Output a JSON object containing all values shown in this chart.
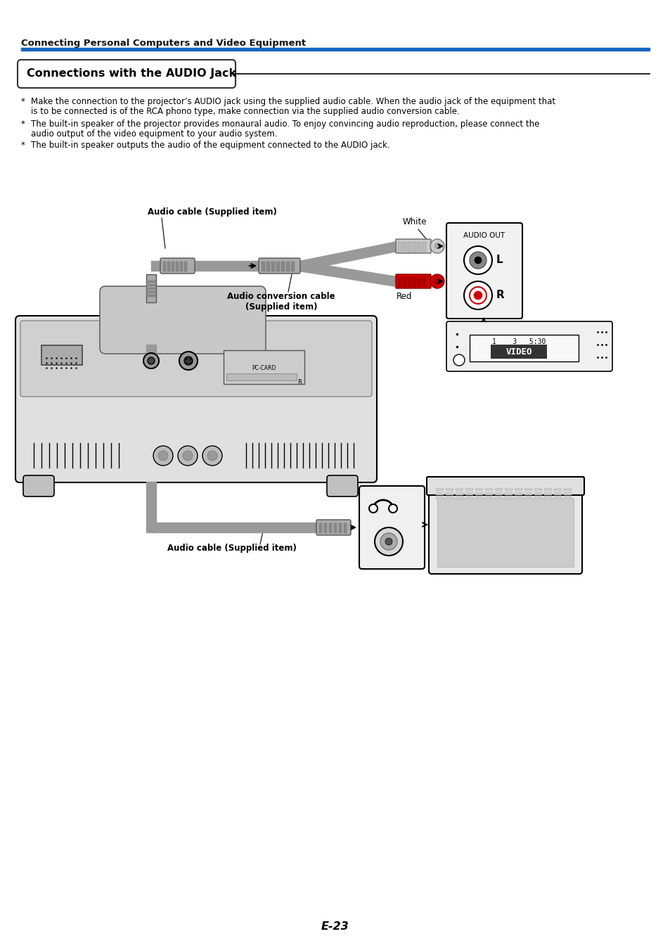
{
  "page_title": "Connecting Personal Computers and Video Equipment",
  "section_title": "Connections with the AUDIO Jack",
  "bullet1_line1": "Make the connection to the projector’s AUDIO jack using the supplied audio cable. When the audio jack of the equipment that",
  "bullet1_line2": "is to be connected is of the RCA phono type, make connection via the supplied audio conversion cable.",
  "bullet2_line1": "The built-in speaker of the projector provides monaural audio. To enjoy convincing audio reproduction, please connect the",
  "bullet2_line2": "audio output of the video equipment to your audio system.",
  "bullet3": "The built-in speaker outputs the audio of the equipment connected to the AUDIO jack.",
  "label_audio_cable_top": "Audio cable (Supplied item)",
  "label_audio_conversion_1": "Audio conversion cable",
  "label_audio_conversion_2": "(Supplied item)",
  "label_white": "White",
  "label_red": "Red",
  "label_audio_out": "AUDIO OUT",
  "label_L": "L",
  "label_R": "R",
  "label_audio_cable_bottom": "Audio cable (Supplied item)",
  "label_pc_card": "PC-CARD",
  "label_video": "VIDEO",
  "label_vcr_time": "1    3   5:30",
  "page_number": "E-23",
  "bg_color": "#ffffff",
  "text_color": "#000000",
  "section_bar_color": "#1565c0",
  "red_connector_color": "#cc0000",
  "gray_cable": "#999999",
  "light_gray": "#dddddd",
  "med_gray": "#bbbbbb",
  "dark_gray": "#888888"
}
